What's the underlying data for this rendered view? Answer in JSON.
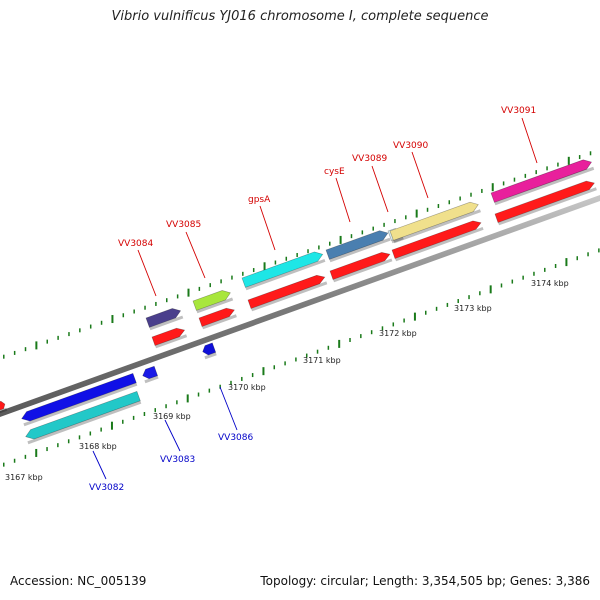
{
  "title": "Vibrio vulnificus YJ016 chromosome I, complete sequence",
  "footer": {
    "accession": "Accession: NC_005139",
    "summary": "Topology: circular; Length: 3,354,505 bp; Genes: 3,386"
  },
  "colors": {
    "forward_label": "#d40000",
    "reverse_label": "#0000c8",
    "cds_feature": "#ff1a1a",
    "backbone": "#8a8a8a",
    "tick": "#1a7a1a"
  },
  "ruler": {
    "ticks": [
      {
        "kbp": 3167,
        "label": "3167 kbp"
      },
      {
        "kbp": 3168,
        "label": "3168 kbp"
      },
      {
        "kbp": 3169,
        "label": "3169 kbp"
      },
      {
        "kbp": 3170,
        "label": "3170 kbp"
      },
      {
        "kbp": 3171,
        "label": "3171 kbp"
      },
      {
        "kbp": 3172,
        "label": "3172 kbp"
      },
      {
        "kbp": 3173,
        "label": "3173 kbp"
      },
      {
        "kbp": 3174,
        "label": "3174 kbp"
      }
    ]
  },
  "genes_forward": [
    {
      "id": "VV3084",
      "label": "VV3084",
      "color": "#4a3f8c"
    },
    {
      "id": "VV3085",
      "label": "VV3085",
      "color": "#a8e63c"
    },
    {
      "id": "gpsA",
      "label": "gpsA",
      "color": "#1ee6e6"
    },
    {
      "id": "cysE",
      "label": "cysE",
      "color": "#4a7fb0"
    },
    {
      "id": "VV3089",
      "label": "VV3089",
      "color": "#d8ecf0"
    },
    {
      "id": "VV3090",
      "label": "VV3090",
      "color": "#f0e08c"
    },
    {
      "id": "VV3091",
      "label": "VV3091",
      "color": "#e8209c"
    }
  ],
  "genes_reverse": [
    {
      "id": "VV3082",
      "label": "VV3082",
      "color": "#1010e6"
    },
    {
      "id": "VV3083",
      "label": "VV3083",
      "color": "#1a1ae6"
    },
    {
      "id": "VV3086",
      "label": "VV3086",
      "color": "#1010d8"
    }
  ]
}
